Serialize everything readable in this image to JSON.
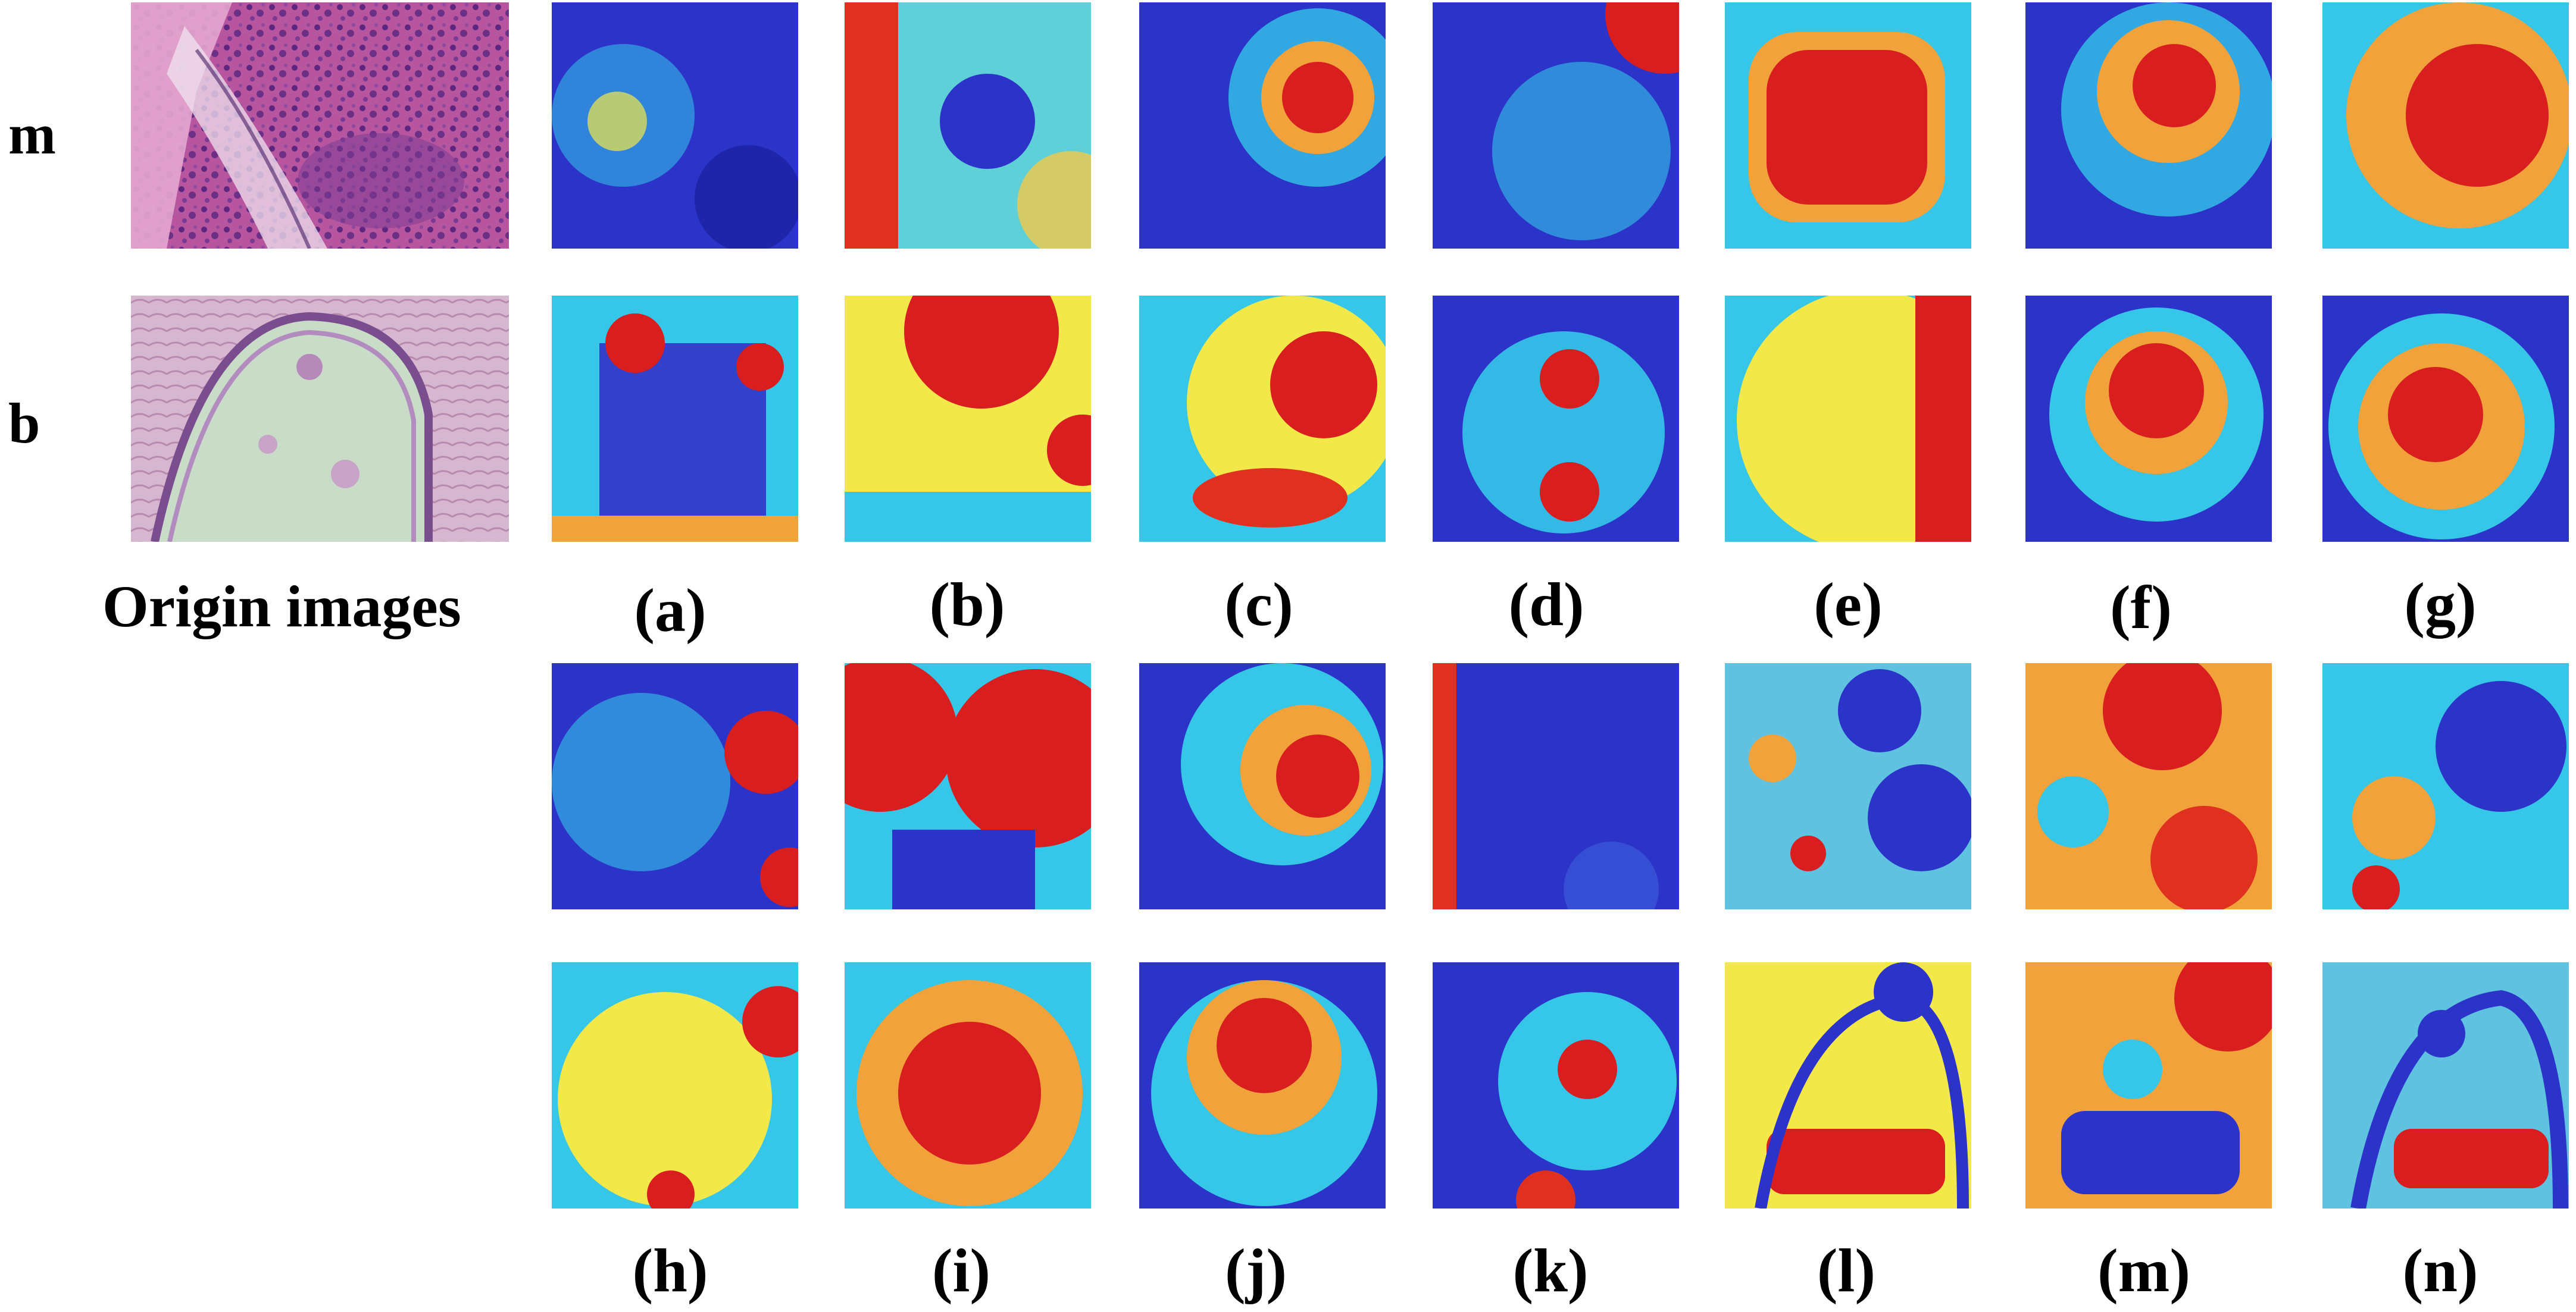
{
  "row_labels": {
    "m": "m",
    "b": "b"
  },
  "origin_caption": "Origin images",
  "captions": {
    "a": "(a)",
    "b": "(b)",
    "c": "(c)",
    "d": "(d)",
    "e": "(e)",
    "f": "(f)",
    "g": "(g)",
    "h": "(h)",
    "i": "(i)",
    "j": "(j)",
    "k": "(k)",
    "l": "(l)",
    "m": "(m)",
    "n": "(n)"
  },
  "colors": {
    "jet_low": "#1e2ab8",
    "jet_mid": "#35c6e8",
    "jet_yellow": "#f2e84a",
    "jet_high": "#d81e1e",
    "he_pink": "#d07fbd",
    "he_purple": "#6b2f86",
    "he_pale": "#c9dcc8"
  }
}
